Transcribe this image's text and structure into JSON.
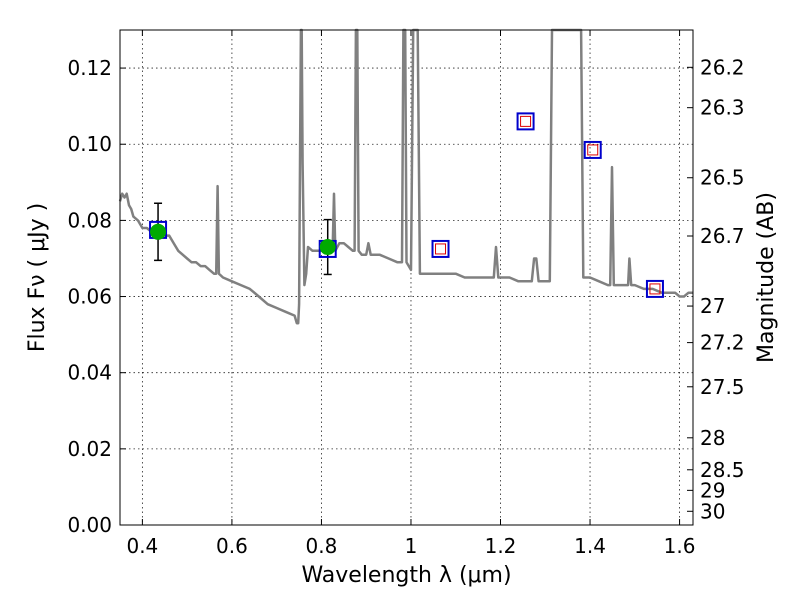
{
  "chart_data": {
    "type": "line",
    "xlabel": "Wavelength  λ (μm)",
    "ylabel": "Flux  Fν  ( μJy )",
    "y2label": "Magnitude (AB)",
    "xlim": [
      0.35,
      1.63
    ],
    "ylim": [
      0.0,
      0.13
    ],
    "grid": true,
    "x_ticks": [
      0.4,
      0.6,
      0.8,
      1.0,
      1.2,
      1.4,
      1.6
    ],
    "x_tick_labels": [
      "0.4",
      "0.6",
      "0.8",
      "1",
      "1.2",
      "1.4",
      "1.6"
    ],
    "y_ticks": [
      0.0,
      0.02,
      0.04,
      0.06,
      0.08,
      0.1,
      0.12
    ],
    "y_tick_labels": [
      "0.00",
      "0.02",
      "0.04",
      "0.06",
      "0.08",
      "0.10",
      "0.12"
    ],
    "mag_ticks": [
      {
        "flux": 0.1202,
        "label": "26.2"
      },
      {
        "flux": 0.1096,
        "label": "26.3"
      },
      {
        "flux": 0.0912,
        "label": "26.5"
      },
      {
        "flux": 0.0759,
        "label": "26.7"
      },
      {
        "flux": 0.0575,
        "label": "27"
      },
      {
        "flux": 0.0479,
        "label": "27.2"
      },
      {
        "flux": 0.0363,
        "label": "27.5"
      },
      {
        "flux": 0.0229,
        "label": "28"
      },
      {
        "flux": 0.0145,
        "label": "28.5"
      },
      {
        "flux": 0.0091,
        "label": "29"
      },
      {
        "flux": 0.0036,
        "label": "30"
      }
    ],
    "model_spectrum": {
      "color": "#808080",
      "points": [
        [
          0.35,
          0.085
        ],
        [
          0.355,
          0.087
        ],
        [
          0.36,
          0.086
        ],
        [
          0.365,
          0.087
        ],
        [
          0.37,
          0.084
        ],
        [
          0.375,
          0.083
        ],
        [
          0.38,
          0.081
        ],
        [
          0.39,
          0.08
        ],
        [
          0.4,
          0.078
        ],
        [
          0.41,
          0.078
        ],
        [
          0.42,
          0.077
        ],
        [
          0.43,
          0.077
        ],
        [
          0.44,
          0.077
        ],
        [
          0.45,
          0.076
        ],
        [
          0.46,
          0.076
        ],
        [
          0.47,
          0.074
        ],
        [
          0.48,
          0.072
        ],
        [
          0.49,
          0.071
        ],
        [
          0.5,
          0.07
        ],
        [
          0.51,
          0.069
        ],
        [
          0.52,
          0.069
        ],
        [
          0.53,
          0.068
        ],
        [
          0.54,
          0.068
        ],
        [
          0.55,
          0.067
        ],
        [
          0.56,
          0.066
        ],
        [
          0.565,
          0.066
        ],
        [
          0.568,
          0.089
        ],
        [
          0.571,
          0.066
        ],
        [
          0.58,
          0.065
        ],
        [
          0.6,
          0.064
        ],
        [
          0.62,
          0.063
        ],
        [
          0.64,
          0.062
        ],
        [
          0.66,
          0.06
        ],
        [
          0.68,
          0.058
        ],
        [
          0.7,
          0.057
        ],
        [
          0.72,
          0.056
        ],
        [
          0.74,
          0.055
        ],
        [
          0.745,
          0.053
        ],
        [
          0.748,
          0.053
        ],
        [
          0.75,
          0.058
        ],
        [
          0.752,
          0.095
        ],
        [
          0.754,
          0.135
        ],
        [
          0.756,
          0.135
        ],
        [
          0.758,
          0.095
        ],
        [
          0.762,
          0.063
        ],
        [
          0.766,
          0.066
        ],
        [
          0.77,
          0.073
        ],
        [
          0.78,
          0.072
        ],
        [
          0.79,
          0.072
        ],
        [
          0.8,
          0.072
        ],
        [
          0.81,
          0.072
        ],
        [
          0.82,
          0.072
        ],
        [
          0.825,
          0.072
        ],
        [
          0.828,
          0.087
        ],
        [
          0.831,
          0.072
        ],
        [
          0.84,
          0.074
        ],
        [
          0.85,
          0.074
        ],
        [
          0.86,
          0.073
        ],
        [
          0.87,
          0.072
        ],
        [
          0.874,
          0.072
        ],
        [
          0.877,
          0.135
        ],
        [
          0.88,
          0.135
        ],
        [
          0.883,
          0.072
        ],
        [
          0.89,
          0.071
        ],
        [
          0.9,
          0.071
        ],
        [
          0.905,
          0.074
        ],
        [
          0.91,
          0.071
        ],
        [
          0.93,
          0.071
        ],
        [
          0.95,
          0.07
        ],
        [
          0.97,
          0.069
        ],
        [
          0.98,
          0.069
        ],
        [
          0.983,
          0.135
        ],
        [
          0.987,
          0.135
        ],
        [
          0.99,
          0.069
        ],
        [
          1.0,
          0.067
        ],
        [
          1.005,
          0.135
        ],
        [
          1.015,
          0.135
        ],
        [
          1.02,
          0.066
        ],
        [
          1.04,
          0.066
        ],
        [
          1.06,
          0.066
        ],
        [
          1.08,
          0.066
        ],
        [
          1.1,
          0.066
        ],
        [
          1.12,
          0.065
        ],
        [
          1.14,
          0.065
        ],
        [
          1.16,
          0.065
        ],
        [
          1.18,
          0.065
        ],
        [
          1.185,
          0.065
        ],
        [
          1.19,
          0.073
        ],
        [
          1.195,
          0.065
        ],
        [
          1.22,
          0.065
        ],
        [
          1.24,
          0.064
        ],
        [
          1.26,
          0.064
        ],
        [
          1.27,
          0.064
        ],
        [
          1.275,
          0.07
        ],
        [
          1.28,
          0.07
        ],
        [
          1.285,
          0.064
        ],
        [
          1.3,
          0.064
        ],
        [
          1.31,
          0.064
        ],
        [
          1.315,
          0.135
        ],
        [
          1.35,
          0.135
        ],
        [
          1.38,
          0.135
        ],
        [
          1.385,
          0.065
        ],
        [
          1.4,
          0.065
        ],
        [
          1.42,
          0.064
        ],
        [
          1.44,
          0.063
        ],
        [
          1.445,
          0.063
        ],
        [
          1.449,
          0.094
        ],
        [
          1.453,
          0.063
        ],
        [
          1.46,
          0.063
        ],
        [
          1.48,
          0.063
        ],
        [
          1.485,
          0.063
        ],
        [
          1.488,
          0.07
        ],
        [
          1.492,
          0.063
        ],
        [
          1.5,
          0.063
        ],
        [
          1.52,
          0.062
        ],
        [
          1.54,
          0.062
        ],
        [
          1.56,
          0.061
        ],
        [
          1.58,
          0.061
        ],
        [
          1.59,
          0.061
        ],
        [
          1.6,
          0.06
        ],
        [
          1.61,
          0.06
        ],
        [
          1.62,
          0.061
        ],
        [
          1.63,
          0.061
        ]
      ]
    },
    "observed_points": {
      "color": "#00aa00",
      "points": [
        {
          "x": 0.435,
          "y": 0.077,
          "yerr": 0.0075
        },
        {
          "x": 0.814,
          "y": 0.073,
          "yerr": 0.0072
        }
      ]
    },
    "model_photometry": {
      "edge_color": "#0000cc",
      "points": [
        {
          "x": 0.435,
          "y": 0.0775
        },
        {
          "x": 0.814,
          "y": 0.0725
        },
        {
          "x": 1.066,
          "y": 0.0725
        },
        {
          "x": 1.256,
          "y": 0.106
        },
        {
          "x": 1.406,
          "y": 0.0985
        },
        {
          "x": 1.545,
          "y": 0.062
        }
      ]
    },
    "filter_points": {
      "edge_color": "#dd0000",
      "points": [
        {
          "x": 1.066,
          "y": 0.0725
        },
        {
          "x": 1.256,
          "y": 0.106
        },
        {
          "x": 1.406,
          "y": 0.0985
        },
        {
          "x": 1.545,
          "y": 0.062
        }
      ]
    }
  }
}
